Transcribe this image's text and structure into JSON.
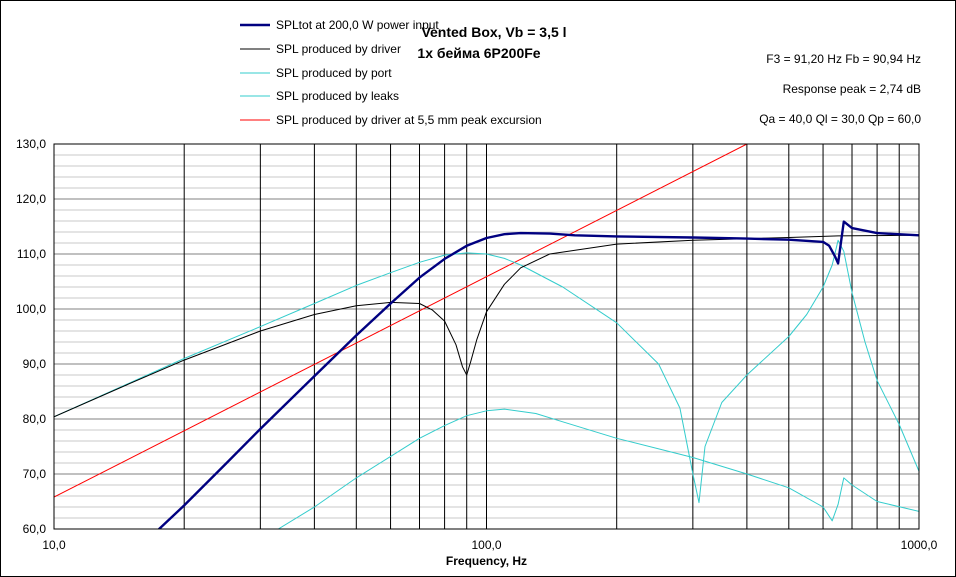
{
  "chart_data": {
    "type": "line",
    "title": "Vented Box, Vb = 3,5 l",
    "subtitle": "1x  бейма 6P200Fe",
    "xlabel": "Frequency, Hz",
    "ylabel": "",
    "x_scale": "log",
    "xlim": [
      10,
      1000
    ],
    "ylim": [
      60,
      130
    ],
    "x_ticks": [
      "10,0",
      "100,0",
      "1000,0"
    ],
    "y_ticks": [
      "60,0",
      "70,0",
      "80,0",
      "90,0",
      "100,0",
      "110,0",
      "120,0",
      "130,0"
    ],
    "info": [
      "F3 = 91,20 Hz  Fb = 90,94 Hz",
      "Response peak = 2,74 dB",
      "Qa = 40,0  Ql = 30,0  Qp = 60,0"
    ],
    "grid": true,
    "legend_position": "top-left, above plot",
    "series": [
      {
        "name": "SPLtot at 200,0 W power input",
        "color": "#000080",
        "width": 2.4,
        "x": [
          17.5,
          20,
          25,
          30,
          40,
          50,
          60,
          70,
          80,
          90,
          100,
          110,
          120,
          140,
          160,
          200,
          300,
          400,
          500,
          600,
          620,
          640,
          650,
          670,
          700,
          800,
          1000
        ],
        "y": [
          60,
          64.3,
          71.9,
          78.2,
          87.8,
          95.2,
          101,
          105.7,
          109.1,
          111.5,
          112.9,
          113.6,
          113.8,
          113.7,
          113.4,
          113.2,
          113,
          112.8,
          112.6,
          112.2,
          111.5,
          109.5,
          108.3,
          115.9,
          114.7,
          113.8,
          113.4
        ]
      },
      {
        "name": "SPL produced by driver",
        "color": "#000000",
        "width": 1,
        "x": [
          10,
          15,
          20,
          30,
          40,
          50,
          60,
          70,
          75,
          80,
          85,
          88,
          90,
          92,
          95,
          100,
          110,
          120,
          140,
          200,
          300,
          500,
          650,
          1000
        ],
        "y": [
          80.4,
          86.5,
          90.7,
          96,
          99,
          100.6,
          101.2,
          101,
          99.8,
          97.8,
          93.5,
          89.5,
          88,
          90.5,
          94.5,
          99.5,
          104.5,
          107.5,
          110,
          111.8,
          112.5,
          113,
          113.3,
          113.4
        ]
      },
      {
        "name": "SPL produced by port",
        "color": "#33CCCC",
        "width": 1,
        "x": [
          10,
          20,
          30,
          40,
          50,
          60,
          70,
          80,
          90,
          100,
          110,
          120,
          150,
          200,
          250,
          280,
          300,
          310,
          320,
          350,
          400,
          500,
          550,
          600,
          630,
          650,
          670,
          700,
          750,
          800,
          900,
          1000
        ],
        "y": [
          80.4,
          91,
          96.8,
          101,
          104.3,
          106.6,
          108.5,
          109.8,
          110.2,
          110,
          109.2,
          108,
          104,
          97.5,
          90,
          82,
          70,
          64.8,
          75,
          83,
          88,
          95,
          99,
          104,
          108,
          112.5,
          110.5,
          103,
          94,
          87,
          79,
          70.5
        ]
      },
      {
        "name": "SPL produced by leaks",
        "color": "#33CCCC",
        "width": 1,
        "x": [
          33,
          40,
          50,
          60,
          70,
          80,
          90,
          100,
          110,
          130,
          150,
          200,
          300,
          400,
          500,
          600,
          630,
          650,
          670,
          700,
          800,
          1000
        ],
        "y": [
          60,
          64,
          69.3,
          73.2,
          76.5,
          78.8,
          80.6,
          81.5,
          81.8,
          81,
          79.5,
          76.5,
          73,
          70,
          67.5,
          64,
          61.5,
          64.5,
          69.3,
          68,
          65,
          63.2
        ]
      },
      {
        "name": "SPL produced by driver at 5,5 mm peak excursion",
        "color": "#FF0000",
        "width": 1,
        "x": [
          10,
          400
        ],
        "y": [
          65.8,
          130
        ]
      }
    ]
  }
}
